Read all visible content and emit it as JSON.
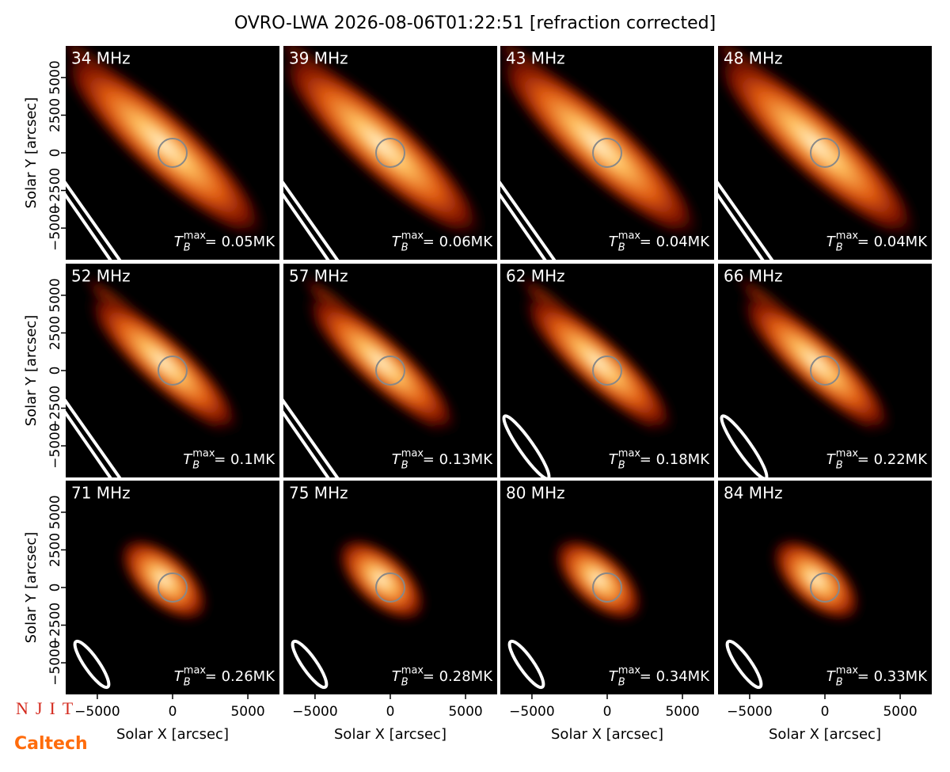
{
  "suptitle": "OVRO-LWA 2026-08-06T01:22:51 [refraction corrected]",
  "tb_symbol": "T",
  "tb_sub": "B",
  "tb_sup": "max",
  "logos": [
    "NJIT",
    "Caltech"
  ],
  "chart_data": [
    {
      "type": "image",
      "title": "34 MHz",
      "annotation": "= 0.05MK",
      "xlim": [
        -7100,
        7100
      ],
      "ylim": [
        -7100,
        7100
      ],
      "ylabel": "Solar Y [arcsec]",
      "yticks": [
        {
          "value": -5000,
          "label": "−5000"
        },
        {
          "value": -2500,
          "label": "−2500"
        },
        0,
        2500,
        5000
      ]
    },
    {
      "type": "image",
      "title": "39 MHz",
      "annotation": "= 0.06MK",
      "xlim": [
        -7100,
        7100
      ],
      "ylim": [
        -7100,
        7100
      ]
    },
    {
      "type": "image",
      "title": "43 MHz",
      "annotation": "= 0.04MK",
      "xlim": [
        -7100,
        7100
      ],
      "ylim": [
        -7100,
        7100
      ]
    },
    {
      "type": "image",
      "title": "48 MHz",
      "annotation": "= 0.04MK",
      "xlim": [
        -7100,
        7100
      ],
      "ylim": [
        -7100,
        7100
      ]
    },
    {
      "type": "image",
      "title": "52 MHz",
      "annotation": "= 0.1MK",
      "xlim": [
        -7100,
        7100
      ],
      "ylim": [
        -7100,
        7100
      ],
      "ylabel": "Solar Y [arcsec]",
      "yticks": [
        {
          "value": -5000,
          "label": "−5000"
        },
        {
          "value": -2500,
          "label": "−2500"
        },
        0,
        2500,
        5000
      ]
    },
    {
      "type": "image",
      "title": "57 MHz",
      "annotation": "= 0.13MK",
      "xlim": [
        -7100,
        7100
      ],
      "ylim": [
        -7100,
        7100
      ]
    },
    {
      "type": "image",
      "title": "62 MHz",
      "annotation": "= 0.18MK",
      "xlim": [
        -7100,
        7100
      ],
      "ylim": [
        -7100,
        7100
      ]
    },
    {
      "type": "image",
      "title": "66 MHz",
      "annotation": "= 0.22MK",
      "xlim": [
        -7100,
        7100
      ],
      "ylim": [
        -7100,
        7100
      ]
    },
    {
      "type": "image",
      "title": "71 MHz",
      "annotation": "= 0.26MK",
      "xlim": [
        -7100,
        7100
      ],
      "ylim": [
        -7100,
        7100
      ],
      "ylabel": "Solar Y [arcsec]",
      "yticks": [
        {
          "value": -5000,
          "label": "−5000"
        },
        {
          "value": -2500,
          "label": "−2500"
        },
        0,
        2500,
        5000
      ],
      "xlabel": "Solar X [arcsec]",
      "xticks": [
        {
          "value": -5000,
          "label": "−5000"
        },
        0,
        5000
      ]
    },
    {
      "type": "image",
      "title": "75 MHz",
      "annotation": "= 0.28MK",
      "xlim": [
        -7100,
        7100
      ],
      "ylim": [
        -7100,
        7100
      ],
      "xlabel": "Solar X [arcsec]",
      "xticks": [
        {
          "value": -5000,
          "label": "−5000"
        },
        0,
        5000
      ]
    },
    {
      "type": "image",
      "title": "80 MHz",
      "annotation": "= 0.34MK",
      "xlim": [
        -7100,
        7100
      ],
      "ylim": [
        -7100,
        7100
      ],
      "xlabel": "Solar X [arcsec]",
      "xticks": [
        {
          "value": -5000,
          "label": "−5000"
        },
        0,
        5000
      ]
    },
    {
      "type": "image",
      "title": "84 MHz",
      "annotation": "= 0.33MK",
      "xlim": [
        -7100,
        7100
      ],
      "ylim": [
        -7100,
        7100
      ],
      "xlabel": "Solar X [arcsec]",
      "xticks": [
        {
          "value": -5000,
          "label": "−5000"
        },
        0,
        5000
      ]
    }
  ]
}
